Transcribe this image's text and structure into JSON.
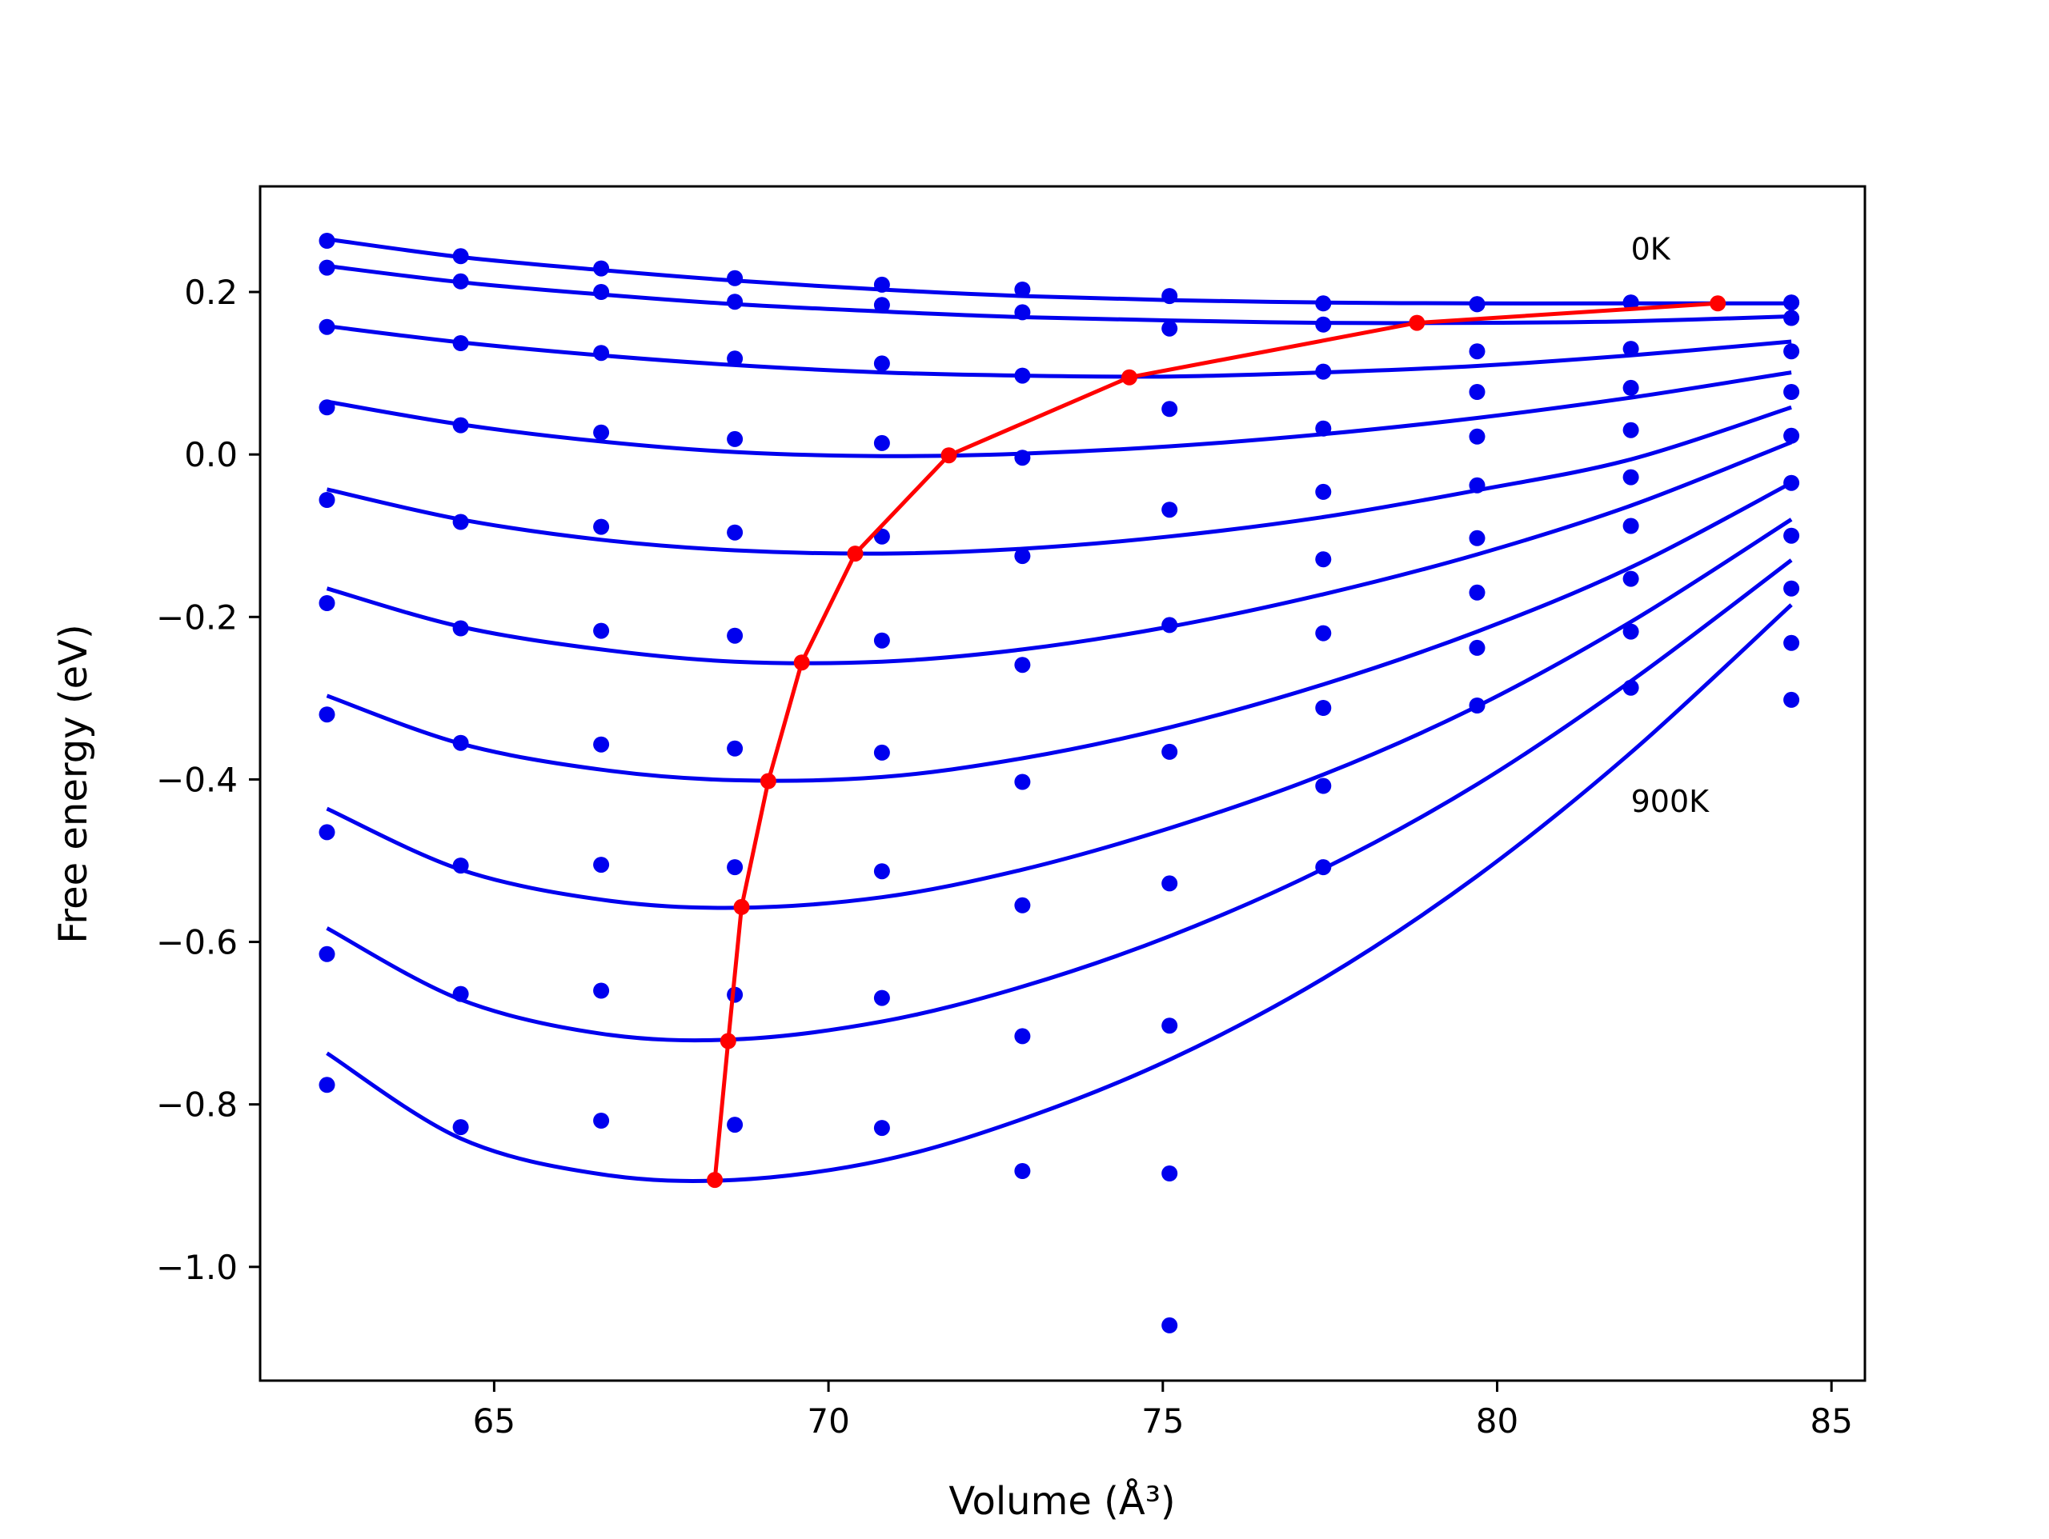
{
  "chart_data": {
    "type": "scatter",
    "title": "",
    "xlabel": "Volume (Å³)",
    "ylabel": "Free energy (eV)",
    "xlim": [
      61.5,
      85.5
    ],
    "ylim": [
      -1.14,
      0.33
    ],
    "xticks": [
      65,
      70,
      75,
      80,
      85
    ],
    "yticks": [
      0.2,
      0.0,
      -0.2,
      -0.4,
      -0.6,
      -0.8,
      -1.0
    ],
    "xtick_labels": [
      "65",
      "70",
      "75",
      "80",
      "85"
    ],
    "ytick_labels": [
      "0.2",
      "0.0",
      "−0.2",
      "−0.4",
      "−0.6",
      "−0.8",
      "−1.0"
    ],
    "grid": false,
    "legend": "none",
    "annotations": [
      {
        "text": "0K",
        "x": 82.0,
        "y": 0.24
      },
      {
        "text": "900K",
        "x": 82.0,
        "y": -0.44
      }
    ],
    "colors": {
      "fit": "#0000ee",
      "points": "#0000ee",
      "minimum_path": "#ff0000"
    },
    "x": [
      62.5,
      64.5,
      66.6,
      68.6,
      70.8,
      72.9,
      75.1,
      77.4,
      79.7,
      82.0,
      84.4
    ],
    "series": [
      {
        "points": [
          0.263,
          0.244,
          0.229,
          0.217,
          0.209,
          0.203,
          0.195,
          0.186,
          0.185,
          0.187,
          0.187
        ],
        "fit": [
          0.265,
          0.243,
          0.227,
          0.214,
          0.203,
          0.195,
          0.19,
          0.187,
          0.186,
          0.186,
          0.186
        ]
      },
      {
        "points": [
          0.23,
          0.213,
          0.2,
          0.188,
          0.184,
          0.175,
          0.155,
          0.16,
          0.185,
          0.187,
          0.187
        ],
        "fit": [
          0.232,
          0.212,
          0.197,
          0.185,
          0.176,
          0.169,
          0.165,
          0.162,
          0.162,
          0.164,
          0.17
        ]
      },
      {
        "points": [
          0.157,
          0.137,
          0.125,
          0.118,
          0.112,
          0.097,
          0.056,
          0.102,
          0.127,
          0.13,
          0.168
        ],
        "fit": [
          0.158,
          0.138,
          0.122,
          0.11,
          0.101,
          0.097,
          0.096,
          0.101,
          0.109,
          0.122,
          0.139
        ]
      },
      {
        "points": [
          0.058,
          0.036,
          0.027,
          0.019,
          0.014,
          -0.004,
          -0.068,
          0.032,
          0.077,
          0.082,
          0.127
        ],
        "fit": [
          0.065,
          0.037,
          0.016,
          0.003,
          -0.002,
          0.001,
          0.01,
          0.025,
          0.045,
          0.07,
          0.101
        ]
      },
      {
        "points": [
          -0.056,
          -0.083,
          -0.089,
          -0.096,
          -0.101,
          -0.125,
          -0.21,
          -0.046,
          0.022,
          0.03,
          0.077
        ],
        "fit": [
          -0.043,
          -0.08,
          -0.105,
          -0.118,
          -0.122,
          -0.116,
          -0.101,
          -0.077,
          -0.044,
          -0.006,
          0.058
        ]
      },
      {
        "points": [
          -0.183,
          -0.214,
          -0.217,
          -0.223,
          -0.229,
          -0.259,
          -0.366,
          -0.129,
          -0.038,
          -0.028,
          0.023
        ],
        "fit": [
          -0.165,
          -0.212,
          -0.24,
          -0.255,
          -0.255,
          -0.24,
          -0.212,
          -0.172,
          -0.123,
          -0.063,
          0.015
        ]
      },
      {
        "points": [
          -0.32,
          -0.355,
          -0.357,
          -0.362,
          -0.367,
          -0.403,
          -0.528,
          -0.22,
          -0.103,
          -0.088,
          -0.035
        ],
        "fit": [
          -0.297,
          -0.356,
          -0.388,
          -0.401,
          -0.397,
          -0.374,
          -0.336,
          -0.283,
          -0.218,
          -0.139,
          -0.035
        ]
      },
      {
        "points": [
          -0.465,
          -0.506,
          -0.505,
          -0.508,
          -0.513,
          -0.555,
          -0.703,
          -0.312,
          -0.17,
          -0.153,
          -0.1
        ],
        "fit": [
          -0.436,
          -0.511,
          -0.548,
          -0.558,
          -0.545,
          -0.511,
          -0.46,
          -0.394,
          -0.31,
          -0.206,
          -0.08
        ]
      },
      {
        "points": [
          -0.615,
          -0.664,
          -0.66,
          -0.665,
          -0.669,
          -0.716,
          -0.885,
          -0.408,
          -0.238,
          -0.218,
          -0.165
        ],
        "fit": [
          -0.583,
          -0.671,
          -0.713,
          -0.72,
          -0.698,
          -0.655,
          -0.593,
          -0.51,
          -0.406,
          -0.279,
          -0.13
        ]
      },
      {
        "points": [
          -0.776,
          -0.828,
          -0.82,
          -0.825,
          -0.829,
          -0.882,
          -1.072,
          -0.508,
          -0.309,
          -0.287,
          -0.232
        ],
        "fit": [
          -0.737,
          -0.842,
          -0.886,
          -0.893,
          -0.869,
          -0.818,
          -0.745,
          -0.645,
          -0.519,
          -0.367,
          -0.185
        ]
      }
    ],
    "extra_points": [
      {
        "x": 84.4,
        "y": -0.302
      }
    ],
    "minimum_path": {
      "x": [
        68.3,
        68.5,
        68.7,
        69.1,
        69.6,
        70.4,
        71.8,
        74.5,
        78.8,
        83.3
      ],
      "y": [
        -0.893,
        -0.722,
        -0.557,
        -0.402,
        -0.256,
        -0.122,
        -0.001,
        0.095,
        0.162,
        0.186
      ]
    }
  }
}
